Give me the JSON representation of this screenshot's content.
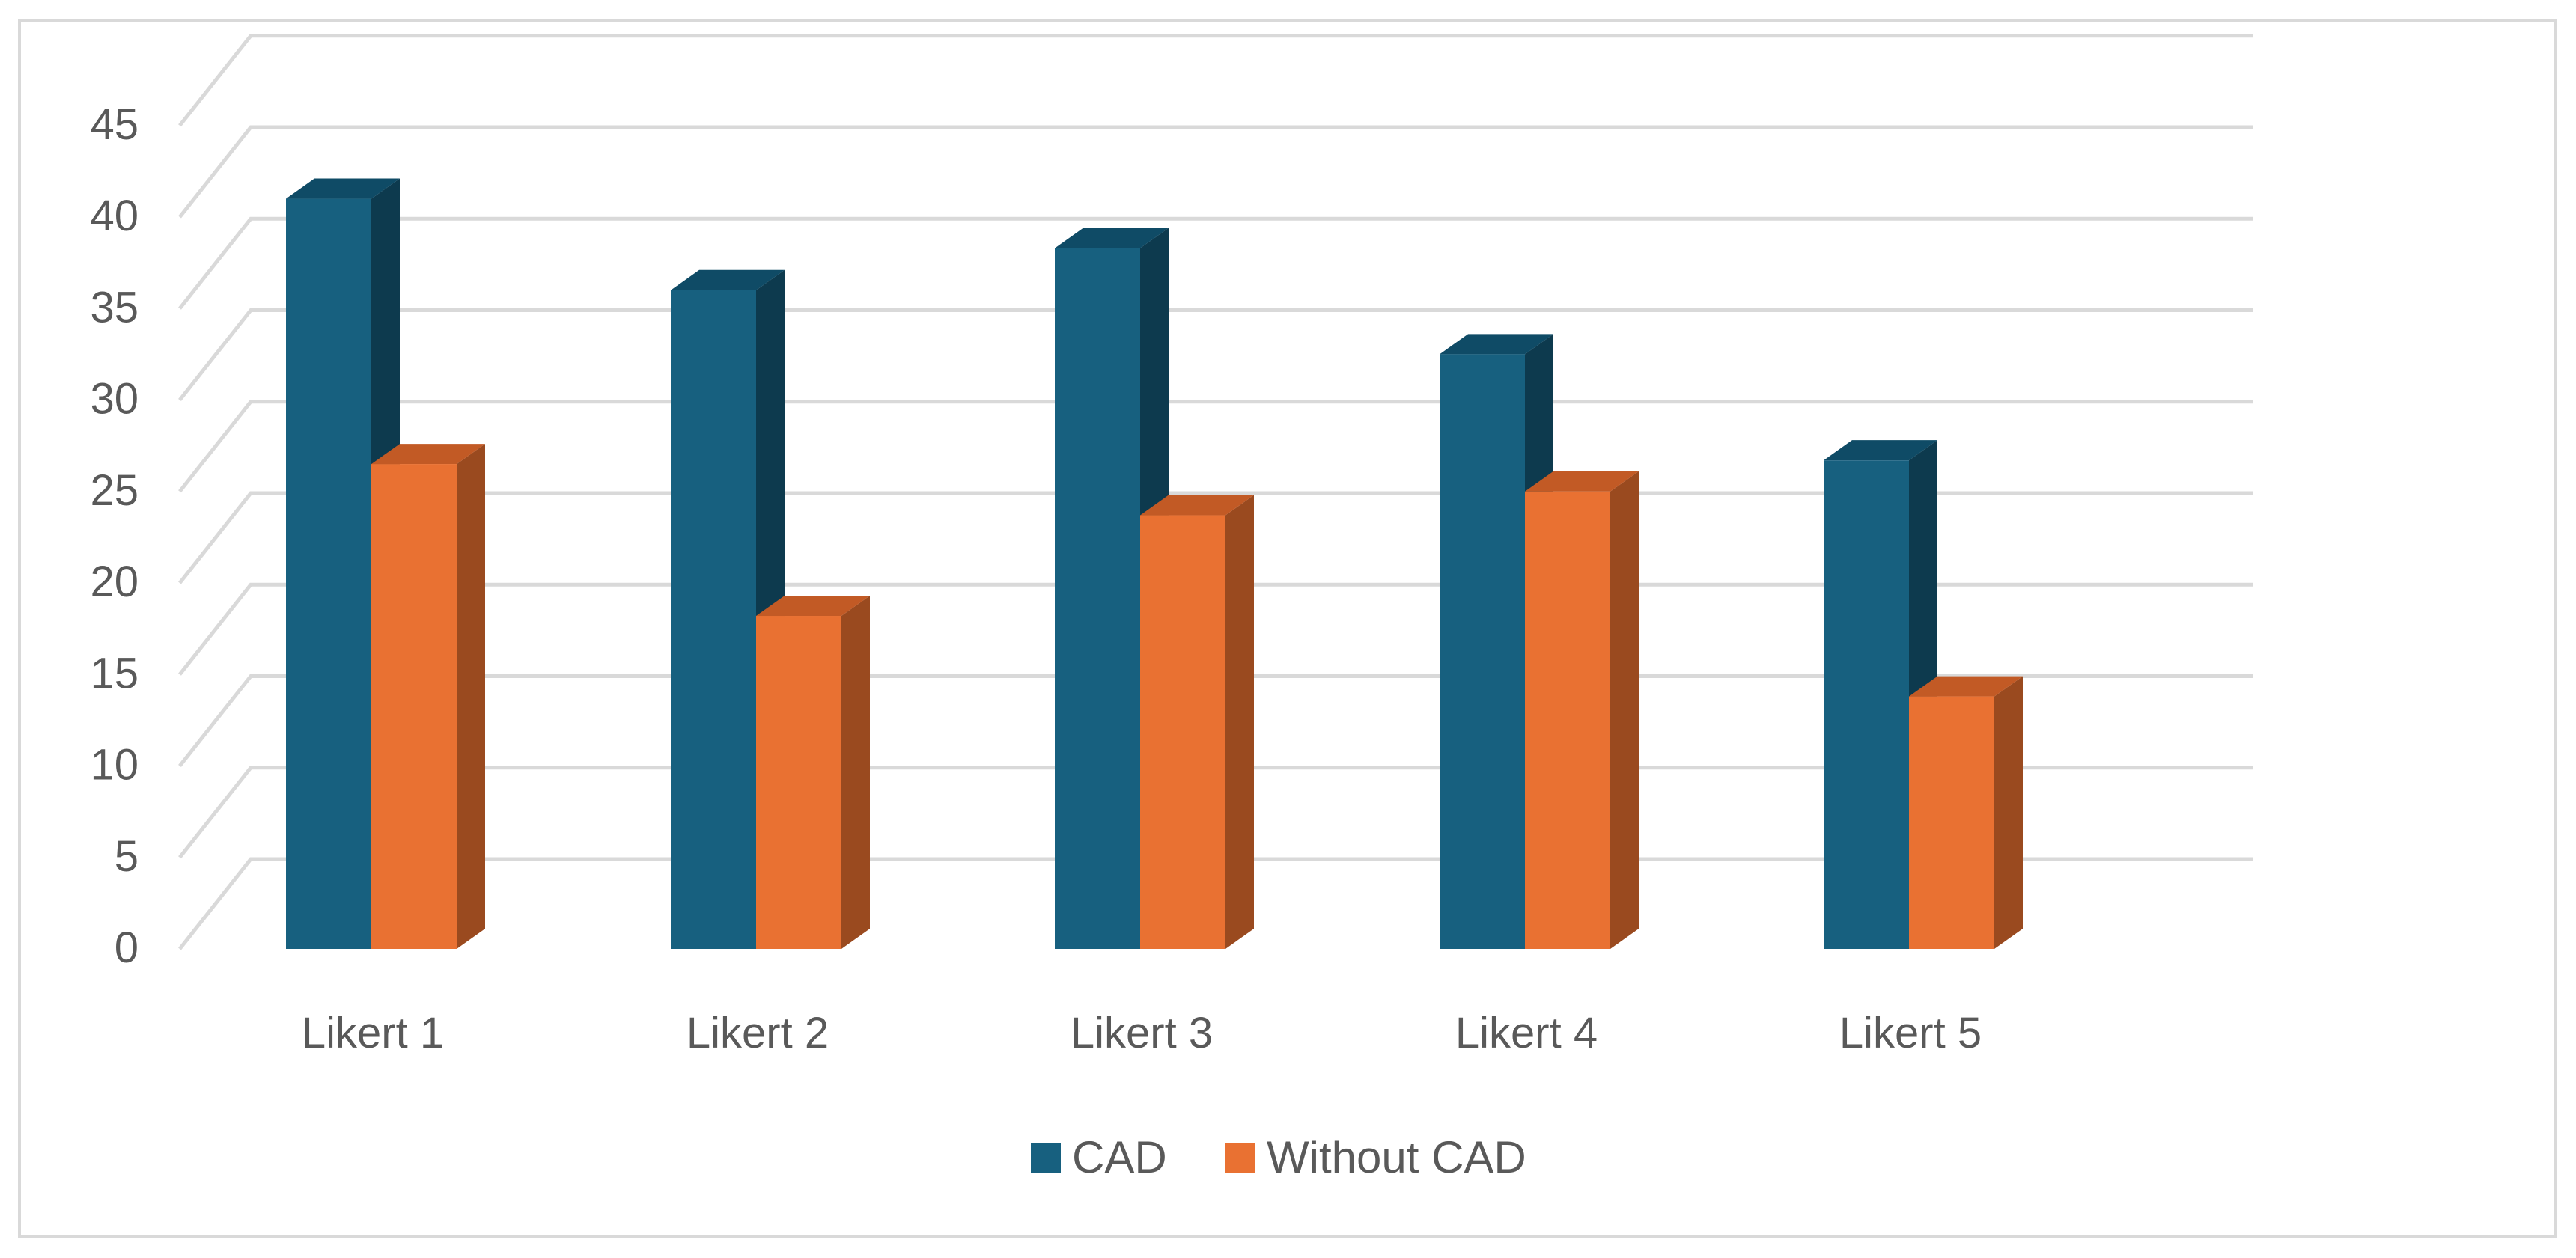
{
  "chart_data": {
    "type": "bar",
    "style": "3d-clustered-column",
    "title": "",
    "xlabel": "",
    "ylabel": "",
    "categories": [
      "Likert 1",
      "Likert 2",
      "Likert 3",
      "Likert 4",
      "Likert 5"
    ],
    "series": [
      {
        "name": "CAD",
        "color": "#17607f",
        "side_color": "#0d3a4e",
        "top_color": "#0f4b66",
        "values": [
          41,
          36,
          38.3,
          32.5,
          26.7
        ]
      },
      {
        "name": "Without CAD",
        "color": "#e97132",
        "side_color": "#9a4a1f",
        "top_color": "#c25a25",
        "values": [
          26.5,
          18.2,
          23.7,
          25,
          13.8
        ]
      }
    ],
    "y_ticks": [
      "0",
      "5",
      "10",
      "15",
      "20",
      "25",
      "30",
      "35",
      "40",
      "45"
    ],
    "ylim": [
      0,
      45
    ],
    "grid": true,
    "legend_position": "bottom"
  }
}
